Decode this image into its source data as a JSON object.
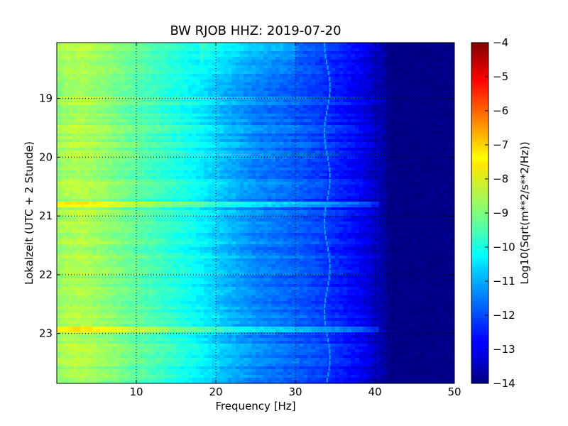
{
  "chart_data": {
    "type": "heatmap",
    "title": "BW RJOB HHZ: 2019-07-20",
    "xlabel": "Frequency [Hz]",
    "ylabel": "Lokalzeit (UTC + 2 Stunde)",
    "xlim": [
      0,
      50
    ],
    "ylim": [
      18.05,
      23.85
    ],
    "x_ticks": [
      10,
      20,
      30,
      40,
      50
    ],
    "x_tick_labels": [
      "10",
      "20",
      "30",
      "40",
      "50"
    ],
    "y_ticks": [
      19,
      20,
      21,
      22,
      23
    ],
    "y_tick_labels": [
      "19",
      "20",
      "21",
      "22",
      "23"
    ],
    "y_inverted": true,
    "grid": true,
    "colormap": "jet",
    "colorbar": {
      "label": "Log10(Sqrt(m**2/s**2/Hz))",
      "range": [
        -14,
        -4
      ],
      "ticks": [
        -4,
        -5,
        -6,
        -7,
        -8,
        -9,
        -10,
        -11,
        -12,
        -13,
        -14
      ],
      "tick_labels": [
        "−4",
        "−5",
        "−6",
        "−7",
        "−8",
        "−9",
        "−10",
        "−11",
        "−12",
        "−13",
        "−14"
      ]
    },
    "spectrum_profile": {
      "frequency_hz": [
        0,
        1,
        3,
        6,
        10,
        15,
        18,
        20,
        22,
        25,
        30,
        33,
        36,
        38,
        40,
        42,
        50
      ],
      "log10_amplitude": [
        -8.8,
        -8.6,
        -8.5,
        -8.8,
        -9.3,
        -9.9,
        -10.3,
        -10.7,
        -11.0,
        -11.4,
        -11.8,
        -12.1,
        -12.5,
        -12.8,
        -13.3,
        -13.9,
        -14.0
      ]
    },
    "features": {
      "line_frequency_hz": 34,
      "rolloff_frequency_hz": 40.5,
      "noisy_hours": [
        20.75,
        20.8,
        22.9
      ]
    }
  }
}
